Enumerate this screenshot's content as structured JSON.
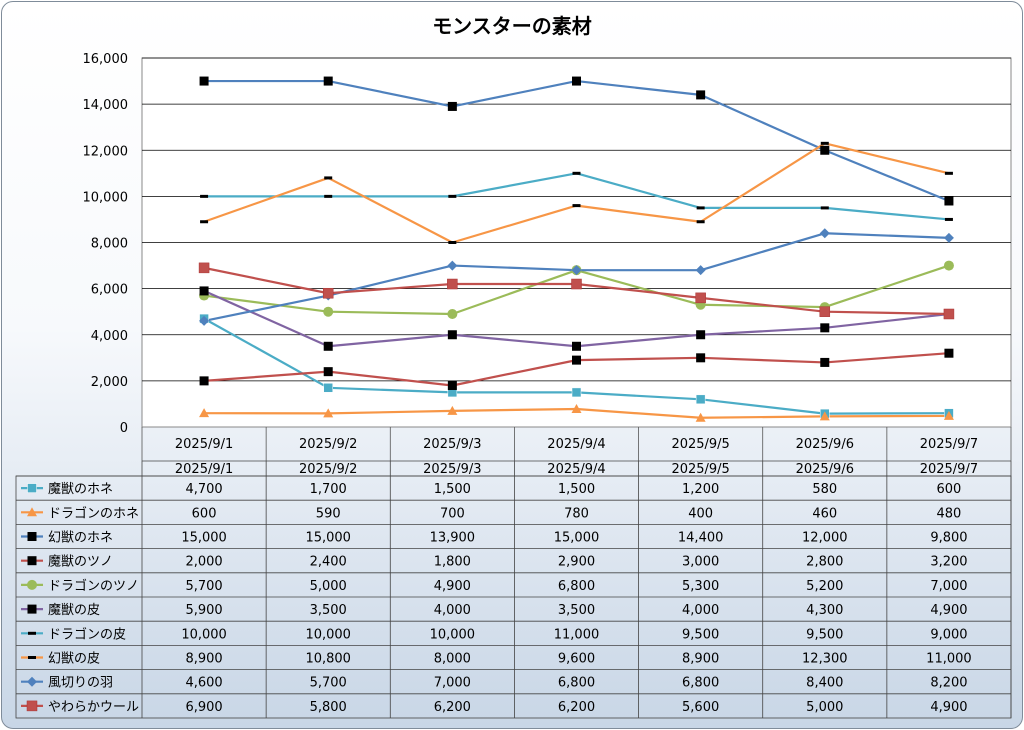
{
  "chart_data": {
    "type": "line",
    "title": "モンスターの素材",
    "categories": [
      "2025/9/1",
      "2025/9/2",
      "2025/9/3",
      "2025/9/4",
      "2025/9/5",
      "2025/9/6",
      "2025/9/7"
    ],
    "ylim": [
      0,
      16000
    ],
    "yticks": [
      "0",
      "2,000",
      "4,000",
      "6,000",
      "8,000",
      "10,000",
      "12,000",
      "14,000",
      "16,000"
    ],
    "grid": true,
    "legend": "data-table",
    "series": [
      {
        "name": "魔獣のホネ",
        "color": "#4bacc6",
        "marker": "square",
        "values": [
          4700,
          1700,
          1500,
          1500,
          1200,
          580,
          600
        ],
        "labels": [
          "4,700",
          "1,700",
          "1,500",
          "1,500",
          "1,200",
          "580",
          "600"
        ]
      },
      {
        "name": "ドラゴンのホネ",
        "color": "#f79646",
        "marker": "triangle",
        "values": [
          600,
          590,
          700,
          780,
          400,
          460,
          480
        ],
        "labels": [
          "600",
          "590",
          "700",
          "780",
          "400",
          "460",
          "480"
        ]
      },
      {
        "name": "幻獣のホネ",
        "color": "#4f81bd",
        "marker": "blacksquare",
        "values": [
          15000,
          15000,
          13900,
          15000,
          14400,
          12000,
          9800
        ],
        "labels": [
          "15,000",
          "15,000",
          "13,900",
          "15,000",
          "14,400",
          "12,000",
          "9,800"
        ]
      },
      {
        "name": "魔獣のツノ",
        "color": "#c0504d",
        "marker": "blacksquare",
        "values": [
          2000,
          2400,
          1800,
          2900,
          3000,
          2800,
          3200
        ],
        "labels": [
          "2,000",
          "2,400",
          "1,800",
          "2,900",
          "3,000",
          "2,800",
          "3,200"
        ]
      },
      {
        "name": "ドラゴンのツノ",
        "color": "#9bbb59",
        "marker": "circle",
        "values": [
          5700,
          5000,
          4900,
          6800,
          5300,
          5200,
          7000
        ],
        "labels": [
          "5,700",
          "5,000",
          "4,900",
          "6,800",
          "5,300",
          "5,200",
          "7,000"
        ]
      },
      {
        "name": "魔獣の皮",
        "color": "#8064a2",
        "marker": "blacksquare",
        "values": [
          5900,
          3500,
          4000,
          3500,
          4000,
          4300,
          4900
        ],
        "labels": [
          "5,900",
          "3,500",
          "4,000",
          "3,500",
          "4,000",
          "4,300",
          "4,900"
        ]
      },
      {
        "name": "ドラゴンの皮",
        "color": "#4bacc6",
        "marker": "dash",
        "values": [
          10000,
          10000,
          10000,
          11000,
          9500,
          9500,
          9000
        ],
        "labels": [
          "10,000",
          "10,000",
          "10,000",
          "11,000",
          "9,500",
          "9,500",
          "9,000"
        ]
      },
      {
        "name": "幻獣の皮",
        "color": "#f79646",
        "marker": "dash",
        "values": [
          8900,
          10800,
          8000,
          9600,
          8900,
          12300,
          11000
        ],
        "labels": [
          "8,900",
          "10,800",
          "8,000",
          "9,600",
          "8,900",
          "12,300",
          "11,000"
        ]
      },
      {
        "name": "風切りの羽",
        "color": "#4f81bd",
        "marker": "diamond",
        "values": [
          4600,
          5700,
          7000,
          6800,
          6800,
          8400,
          8200
        ],
        "labels": [
          "4,600",
          "5,700",
          "7,000",
          "6,800",
          "6,800",
          "8,400",
          "8,200"
        ]
      },
      {
        "name": "やわらかウール",
        "color": "#c0504d",
        "marker": "redsquare",
        "values": [
          6900,
          5800,
          6200,
          6200,
          5600,
          5000,
          4900
        ],
        "labels": [
          "6,900",
          "5,800",
          "6,200",
          "6,200",
          "5,600",
          "5,000",
          "4,900"
        ]
      }
    ]
  }
}
